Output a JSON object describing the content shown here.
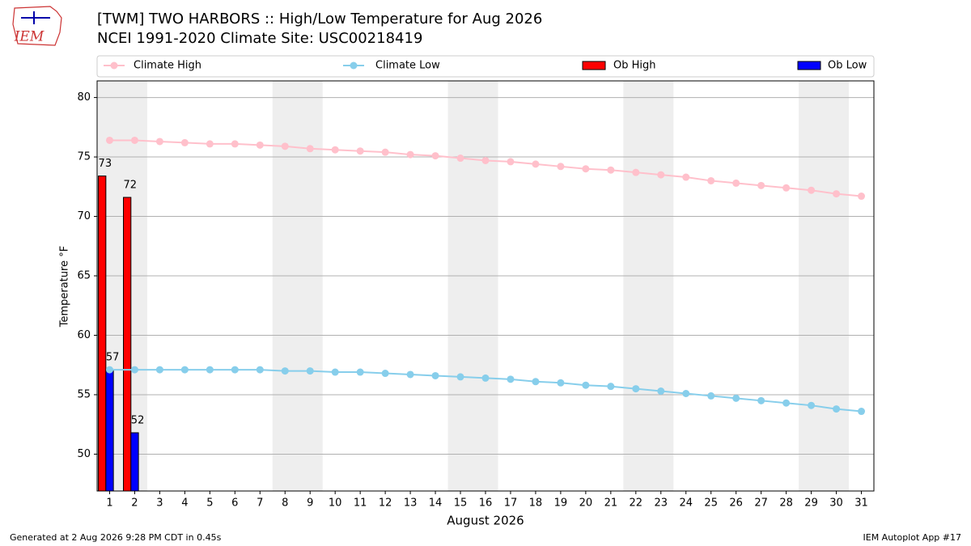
{
  "logo_text": "IEM",
  "chart_data": {
    "type": "line",
    "title": "[TWM] TWO HARBORS :: High/Low Temperature for Aug 2026",
    "subtitle": "NCEI 1991-2020 Climate Site: USC00218419",
    "xlabel": "August 2026",
    "ylabel": "Temperature °F",
    "footer_left": "Generated at 2 Aug 2026 9:28 PM CDT in 0.45s",
    "footer_right": "IEM Autoplot App #17",
    "x": [
      1,
      2,
      3,
      4,
      5,
      6,
      7,
      8,
      9,
      10,
      11,
      12,
      13,
      14,
      15,
      16,
      17,
      18,
      19,
      20,
      21,
      22,
      23,
      24,
      25,
      26,
      27,
      28,
      29,
      30,
      31
    ],
    "xlim": [
      0.5,
      31.5
    ],
    "xticks": [
      1,
      2,
      3,
      4,
      5,
      6,
      7,
      8,
      9,
      10,
      11,
      12,
      13,
      14,
      15,
      16,
      17,
      18,
      19,
      20,
      21,
      22,
      23,
      24,
      25,
      26,
      27,
      28,
      29,
      30,
      31
    ],
    "ylim": [
      46.9,
      81.4
    ],
    "yticks": [
      50,
      55,
      60,
      65,
      70,
      75,
      80
    ],
    "grid": true,
    "shaded_ranges": [
      [
        0.5,
        2.5
      ],
      [
        7.5,
        9.5
      ],
      [
        14.5,
        16.5
      ],
      [
        21.5,
        23.5
      ],
      [
        28.5,
        30.5
      ]
    ],
    "shade_color": "#eeeeee",
    "series": [
      {
        "name": "Climate High",
        "kind": "line",
        "color": "#ffc0cb",
        "values": [
          76.4,
          76.4,
          76.3,
          76.2,
          76.1,
          76.1,
          76.0,
          75.9,
          75.7,
          75.6,
          75.5,
          75.4,
          75.2,
          75.1,
          74.9,
          74.7,
          74.6,
          74.4,
          74.2,
          74.0,
          73.9,
          73.7,
          73.5,
          73.3,
          73.0,
          72.8,
          72.6,
          72.4,
          72.2,
          71.9,
          71.7
        ]
      },
      {
        "name": "Climate Low",
        "kind": "line",
        "color": "#87ceeb",
        "values": [
          57.1,
          57.1,
          57.1,
          57.1,
          57.1,
          57.1,
          57.1,
          57.0,
          57.0,
          56.9,
          56.9,
          56.8,
          56.7,
          56.6,
          56.5,
          56.4,
          56.3,
          56.1,
          56.0,
          55.8,
          55.7,
          55.5,
          55.3,
          55.1,
          54.9,
          54.7,
          54.5,
          54.3,
          54.1,
          53.8,
          53.6
        ]
      },
      {
        "name": "Ob High",
        "kind": "bar",
        "color": "#ff0000",
        "values": [
          73.4,
          71.6,
          null,
          null,
          null,
          null,
          null,
          null,
          null,
          null,
          null,
          null,
          null,
          null,
          null,
          null,
          null,
          null,
          null,
          null,
          null,
          null,
          null,
          null,
          null,
          null,
          null,
          null,
          null,
          null,
          null
        ],
        "value_labels": [
          "73",
          "72",
          null,
          null,
          null,
          null,
          null,
          null,
          null,
          null,
          null,
          null,
          null,
          null,
          null,
          null,
          null,
          null,
          null,
          null,
          null,
          null,
          null,
          null,
          null,
          null,
          null,
          null,
          null,
          null,
          null
        ]
      },
      {
        "name": "Ob Low",
        "kind": "bar",
        "color": "#0000ff",
        "values": [
          57.1,
          51.8,
          null,
          null,
          null,
          null,
          null,
          null,
          null,
          null,
          null,
          null,
          null,
          null,
          null,
          null,
          null,
          null,
          null,
          null,
          null,
          null,
          null,
          null,
          null,
          null,
          null,
          null,
          null,
          null,
          null
        ],
        "value_labels": [
          "57",
          "52",
          null,
          null,
          null,
          null,
          null,
          null,
          null,
          null,
          null,
          null,
          null,
          null,
          null,
          null,
          null,
          null,
          null,
          null,
          null,
          null,
          null,
          null,
          null,
          null,
          null,
          null,
          null,
          null,
          null
        ]
      }
    ]
  }
}
